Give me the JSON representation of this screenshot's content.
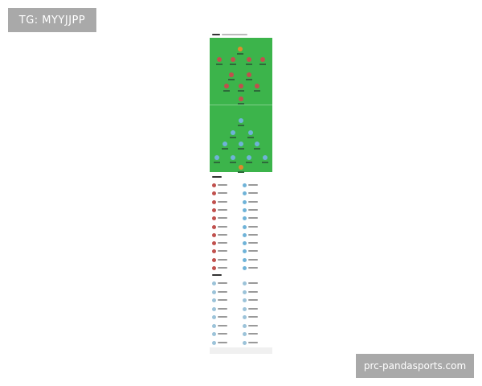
{
  "watermarks": {
    "top_left": "TG: MYYJJPP",
    "bottom_right": "prc-pandasports.com"
  },
  "colors": {
    "pitch": "#3cb44b",
    "home_kit": "#c0504d",
    "away_kit": "#6fb3d8",
    "goalkeeper": "#e08a2c"
  },
  "lineup": {
    "home_formation_rows": [
      1,
      4,
      2,
      3,
      1
    ],
    "away_formation_rows": [
      1,
      2,
      3,
      4,
      1
    ]
  },
  "lists": {
    "section1_rows": 11,
    "section2_rows": 8
  }
}
